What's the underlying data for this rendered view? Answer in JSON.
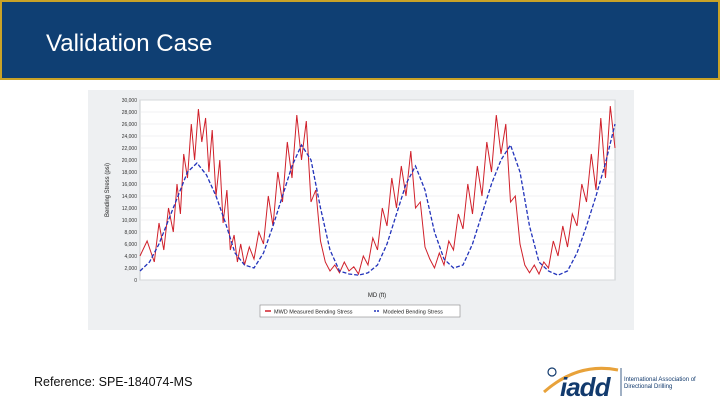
{
  "slide": {
    "title": "Validation Case",
    "reference": "Reference: SPE-184074-MS"
  },
  "logo": {
    "name": "iadd",
    "tagline": "International Association of Directional Drilling",
    "accent_color": "#e8a23a",
    "text_color": "#123a6d"
  },
  "colors": {
    "header_bg": "#0f3f73",
    "header_border": "#c9a227",
    "measured": "#d0202a",
    "modeled": "#2233bb"
  },
  "chart_data": {
    "type": "line",
    "title": "",
    "ylabel": "Bending Stress (psi)",
    "xlabel": "MD (ft)",
    "ylim": [
      0,
      30000
    ],
    "yticks": [
      0,
      2000,
      4000,
      6000,
      8000,
      10000,
      12000,
      14000,
      16000,
      18000,
      20000,
      22000,
      24000,
      26000,
      28000,
      30000
    ],
    "ytick_labels": [
      "0",
      "2,000",
      "4,000",
      "6,000",
      "8,000",
      "10,000",
      "12,000",
      "14,000",
      "16,000",
      "18,000",
      "20,000",
      "22,000",
      "24,000",
      "26,000",
      "28,000",
      "30,000"
    ],
    "xlim": [
      0,
      100
    ],
    "grid": true,
    "legend": "bottom-center",
    "series": [
      {
        "name": "MWD Measured Bending Stress",
        "color": "#d0202a",
        "x": [
          0,
          1.5,
          3,
          4,
          5,
          6,
          7,
          7.8,
          8.5,
          9.2,
          10,
          10.8,
          11.5,
          12.3,
          13,
          13.8,
          14.5,
          15.2,
          16,
          16.8,
          17.5,
          18.3,
          19,
          19.8,
          20.5,
          21.2,
          22,
          23,
          24,
          25,
          26,
          27,
          28,
          29,
          30,
          31,
          32,
          33,
          34,
          35,
          36,
          37,
          38,
          39,
          40,
          41,
          42,
          43,
          44,
          45,
          46,
          47,
          48,
          49,
          50,
          51,
          52,
          53,
          54,
          55,
          56,
          57,
          58,
          59,
          60,
          61,
          62,
          63,
          64,
          65,
          66,
          67,
          68,
          69,
          70,
          71,
          72,
          73,
          74,
          75,
          76,
          77,
          78,
          79,
          80,
          81,
          82,
          83,
          84,
          85,
          86,
          87,
          88,
          89,
          90,
          91,
          92,
          93,
          94,
          95,
          96,
          97,
          98,
          99,
          100
        ],
        "y": [
          4000,
          6500,
          3000,
          9500,
          5000,
          12000,
          8000,
          16000,
          11000,
          21000,
          17000,
          26000,
          20000,
          28500,
          23000,
          27000,
          18000,
          25000,
          14000,
          20000,
          9500,
          15000,
          5000,
          7500,
          3000,
          6000,
          2500,
          5500,
          3500,
          8000,
          6000,
          14000,
          9000,
          18000,
          13000,
          23000,
          17000,
          27500,
          20000,
          26500,
          13000,
          15000,
          6500,
          3000,
          1500,
          2500,
          1200,
          3000,
          1500,
          2200,
          1000,
          4000,
          2500,
          7000,
          5000,
          12000,
          9000,
          17000,
          12000,
          19000,
          14000,
          21500,
          12000,
          13000,
          5500,
          3500,
          2000,
          4500,
          2500,
          6500,
          5000,
          11000,
          8500,
          16000,
          11000,
          19000,
          14000,
          23000,
          18000,
          27500,
          21000,
          26000,
          13000,
          14000,
          6000,
          2500,
          1200,
          2500,
          1000,
          3000,
          2000,
          6500,
          4000,
          9000,
          5500,
          11000,
          9000,
          16000,
          13000,
          21000,
          15000,
          27000,
          17000,
          29000,
          22000
        ]
      },
      {
        "name": "Modeled Bending Stress",
        "color": "#2233bb",
        "x": [
          0,
          2,
          4,
          6,
          8,
          10,
          12,
          14,
          16,
          18,
          20,
          22,
          24,
          26,
          28,
          30,
          32,
          34,
          36,
          38,
          40,
          42,
          44,
          46,
          48,
          50,
          52,
          54,
          56,
          58,
          60,
          62,
          64,
          66,
          68,
          70,
          72,
          74,
          76,
          78,
          80,
          82,
          84,
          86,
          88,
          90,
          92,
          94,
          96,
          98,
          100
        ],
        "y": [
          1500,
          3000,
          6000,
          10000,
          14000,
          18000,
          19500,
          17500,
          14000,
          9500,
          4500,
          2500,
          2000,
          4500,
          9000,
          14000,
          19000,
          22500,
          20000,
          12000,
          5000,
          1500,
          1000,
          800,
          1200,
          2500,
          6000,
          11000,
          16000,
          19000,
          15000,
          8000,
          3500,
          2000,
          2500,
          6000,
          11000,
          16000,
          20000,
          22500,
          18000,
          9000,
          3000,
          1500,
          800,
          1500,
          4500,
          9000,
          14000,
          19500,
          26000
        ]
      }
    ]
  }
}
